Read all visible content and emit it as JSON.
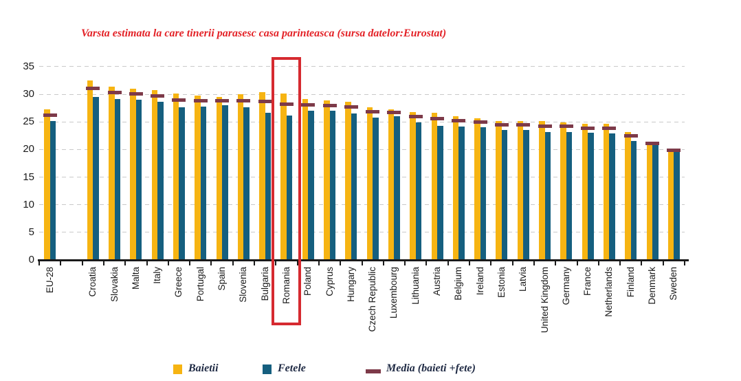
{
  "title": {
    "text": "Varsta estimata la care tinerii parasesc casa parinteasca (sursa datelor:Eurostat)",
    "color": "#e32227"
  },
  "chart_data": {
    "type": "bar",
    "title": "Varsta estimata la care tinerii parasesc casa parinteasca (sursa datelor:Eurostat)",
    "categories": [
      "EU-28",
      "Croatia",
      "Slovakia",
      "Malta",
      "Italy",
      "Greece",
      "Portugal",
      "Spain",
      "Slovenia",
      "Bulgaria",
      "Romania",
      "Poland",
      "Cyprus",
      "Hungary",
      "Czech Republic",
      "Luxembourg",
      "Lithuania",
      "Austria",
      "Belgium",
      "Ireland",
      "Estonia",
      "Latvia",
      "United Kingdom",
      "Germany",
      "France",
      "Netherlands",
      "Finland",
      "Denmark",
      "Sweden"
    ],
    "series": [
      {
        "name": "Baietii",
        "color": "#f6b412",
        "marker": "square",
        "values": [
          27.3,
          32.5,
          31.4,
          31.0,
          30.7,
          30.1,
          29.8,
          29.5,
          30.0,
          30.4,
          30.1,
          29.1,
          28.9,
          28.7,
          27.7,
          27.3,
          26.8,
          26.6,
          26.0,
          25.7,
          25.2,
          25.2,
          25.2,
          24.9,
          24.6,
          24.6,
          23.2,
          21.2,
          19.7
        ]
      },
      {
        "name": "Fetele",
        "color": "#155f7f",
        "marker": "square",
        "values": [
          25.2,
          29.5,
          29.1,
          29.0,
          28.7,
          27.6,
          27.8,
          28.0,
          27.6,
          26.7,
          26.2,
          27.0,
          27.0,
          26.5,
          25.8,
          26.0,
          24.9,
          24.3,
          24.2,
          24.0,
          23.5,
          23.5,
          23.2,
          23.2,
          23.0,
          22.9,
          21.6,
          20.9,
          19.6
        ]
      },
      {
        "name": "Media (baieti +fete)",
        "color": "#7d3a49",
        "marker": "dash",
        "values": [
          26.2,
          31.0,
          30.3,
          30.0,
          29.7,
          28.9,
          28.8,
          28.8,
          28.8,
          28.6,
          28.2,
          28.0,
          27.9,
          27.6,
          26.8,
          26.7,
          25.9,
          25.5,
          25.1,
          24.9,
          24.4,
          24.4,
          24.2,
          24.1,
          23.8,
          23.8,
          22.4,
          21.1,
          19.8
        ]
      }
    ],
    "ylim": [
      0,
      35
    ],
    "yticks": [
      0,
      5,
      10,
      15,
      20,
      25,
      30,
      35
    ],
    "grid": "dashed-horizontal",
    "legend_position": "bottom",
    "gap_after_first_category": true,
    "highlight": {
      "category": "Romania",
      "box_color": "#d62a30"
    }
  }
}
